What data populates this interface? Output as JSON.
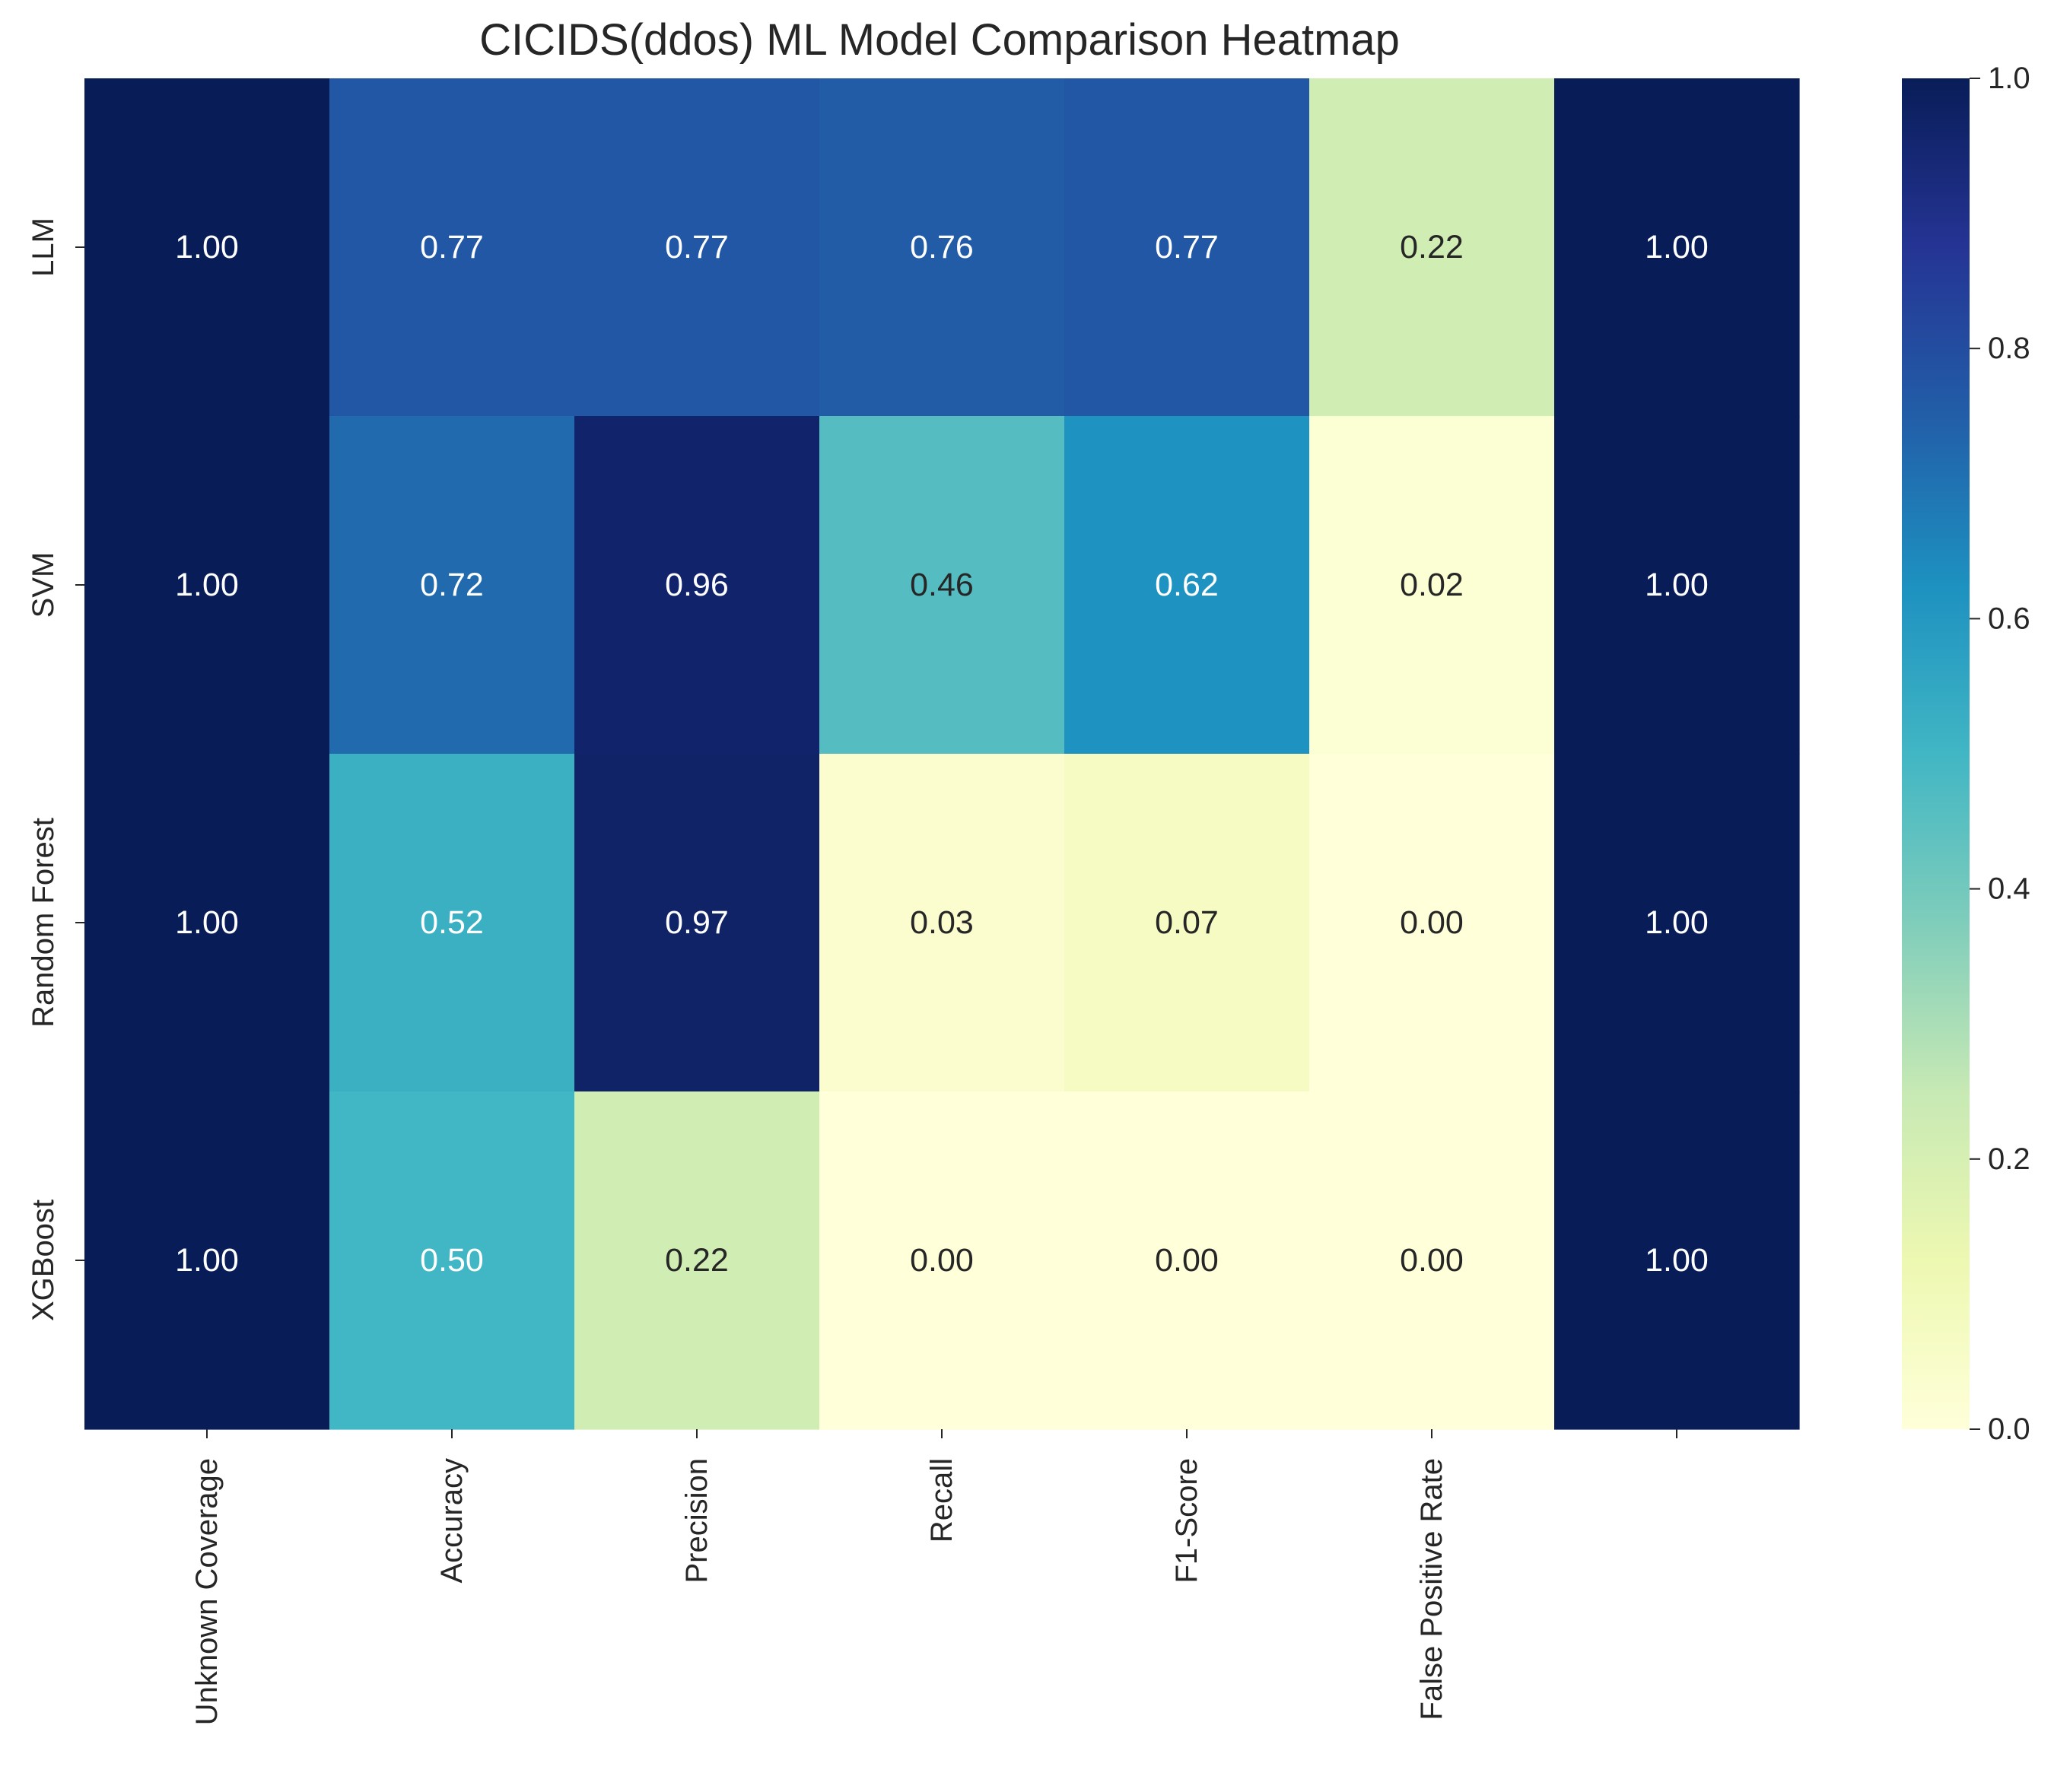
{
  "chart_data": {
    "type": "heatmap",
    "title": "CICIDS(ddos) ML Model Comparison Heatmap",
    "xlabel": "",
    "ylabel": "",
    "x_tick_labels": [
      "Unknown Coverage",
      "Accuracy",
      "Precision",
      "Recall",
      "F1-Score",
      "False Positive Rate",
      ""
    ],
    "rows": [
      "LLM",
      "SVM",
      "Random Forest",
      "XGBoost"
    ],
    "values": [
      [
        1.0,
        0.77,
        0.77,
        0.76,
        0.77,
        0.22,
        1.0
      ],
      [
        1.0,
        0.72,
        0.96,
        0.46,
        0.62,
        0.02,
        1.0
      ],
      [
        1.0,
        0.52,
        0.97,
        0.03,
        0.07,
        0.0,
        1.0
      ],
      [
        1.0,
        0.5,
        0.22,
        0.0,
        0.0,
        0.0,
        1.0
      ]
    ],
    "value_format": "0.00",
    "colorbar": {
      "range": [
        0.0,
        1.0
      ],
      "ticks": [
        "0.0",
        "0.2",
        "0.4",
        "0.6",
        "0.8",
        "1.0"
      ],
      "colormap": "YlGnBu"
    },
    "colormap_stops": [
      "#ffffd9",
      "#edf8b1",
      "#c7e9b4",
      "#7fcdbb",
      "#41b6c4",
      "#1d91c0",
      "#225ea8",
      "#253494",
      "#081d58"
    ],
    "text_color_dark": "#262626",
    "text_color_light": "#ffffff"
  }
}
